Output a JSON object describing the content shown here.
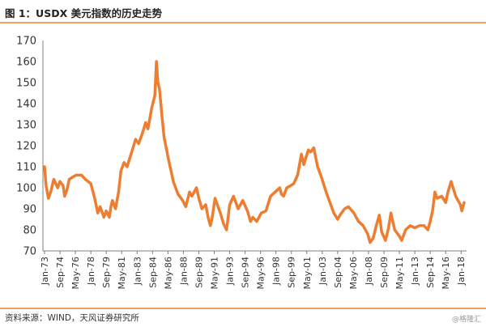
{
  "header": {
    "title": "图 1：USDX 美元指数的历史走势"
  },
  "footer": {
    "source": "资料来源：WIND，天风证券研究所",
    "watermark": "@格隆汇"
  },
  "colors": {
    "series": "#ed7d31",
    "axis": "#7f7f7f",
    "accent_rule": "#f0a060"
  },
  "chart_data": {
    "type": "line",
    "title": "",
    "xlabel": "",
    "ylabel": "",
    "ylim": [
      70,
      170
    ],
    "yticks": [
      70,
      80,
      90,
      100,
      110,
      120,
      130,
      140,
      150,
      160,
      170
    ],
    "grid": false,
    "legend": "none",
    "xticks": [
      "Jan-73",
      "Sep-74",
      "May-76",
      "Jan-78",
      "Sep-79",
      "May-81",
      "Jan-83",
      "Sep-84",
      "May-86",
      "Jan-88",
      "Sep-89",
      "May-91",
      "Jan-93",
      "Sep-94",
      "May-96",
      "Jan-98",
      "Sep-99",
      "May-01",
      "Jan-03",
      "Sep-04",
      "May-06",
      "Jan-08",
      "Sep-09",
      "May-11",
      "Jan-13",
      "Sep-14",
      "May-16",
      "Jan-18"
    ],
    "series": [
      {
        "x": [
          "1973-01",
          "1973-03",
          "1973-06",
          "1973-09",
          "1974-01",
          "1974-06",
          "1974-09",
          "1975-01",
          "1975-03",
          "1975-06",
          "1975-09",
          "1976-01",
          "1976-06",
          "1977-01",
          "1977-06",
          "1978-01",
          "1978-06",
          "1978-10",
          "1979-01",
          "1979-06",
          "1979-09",
          "1980-01",
          "1980-03",
          "1980-05",
          "1980-09",
          "1981-01",
          "1981-04",
          "1981-08",
          "1981-12",
          "1982-06",
          "1982-11",
          "1983-03",
          "1983-08",
          "1983-12",
          "1984-03",
          "1984-08",
          "1984-12",
          "1985-02",
          "1985-04",
          "1985-06",
          "1985-09",
          "1985-12",
          "1986-06",
          "1986-12",
          "1987-06",
          "1987-12",
          "1988-04",
          "1988-09",
          "1988-12",
          "1989-06",
          "1989-09",
          "1990-01",
          "1990-06",
          "1990-09",
          "1990-12",
          "1991-02",
          "1991-06",
          "1991-09",
          "1992-01",
          "1992-05",
          "1992-09",
          "1993-01",
          "1993-06",
          "1993-12",
          "1994-06",
          "1994-12",
          "1995-04",
          "1995-07",
          "1995-12",
          "1996-06",
          "1996-12",
          "1997-06",
          "1997-12",
          "1998-06",
          "1998-08",
          "1998-11",
          "1999-03",
          "1999-08",
          "1999-12",
          "2000-05",
          "2000-10",
          "2001-01",
          "2001-07",
          "2001-10",
          "2002-02",
          "2002-07",
          "2002-12",
          "2003-06",
          "2003-12",
          "2004-04",
          "2004-09",
          "2004-12",
          "2005-06",
          "2005-11",
          "2006-06",
          "2006-12",
          "2007-06",
          "2007-12",
          "2008-03",
          "2008-07",
          "2008-11",
          "2009-03",
          "2009-06",
          "2009-11",
          "2010-03",
          "2010-06",
          "2010-11",
          "2011-05",
          "2011-08",
          "2012-01",
          "2012-07",
          "2013-01",
          "2013-07",
          "2014-01",
          "2014-06",
          "2014-09",
          "2014-12",
          "2015-03",
          "2015-06",
          "2015-12",
          "2016-05",
          "2016-08",
          "2016-12",
          "2017-06",
          "2017-09",
          "2017-12",
          "2018-02",
          "2018-05"
        ],
        "values": [
          110,
          101,
          95,
          98,
          104,
          100,
          103,
          101,
          96,
          99,
          104,
          105,
          106,
          106,
          104,
          102,
          95,
          88,
          91,
          86,
          89,
          86,
          91,
          94,
          90,
          98,
          108,
          112,
          110,
          117,
          123,
          121,
          126,
          131,
          128,
          138,
          144,
          160,
          150,
          147,
          135,
          124,
          113,
          103,
          97,
          94,
          91,
          98,
          96,
          100,
          95,
          90,
          92,
          86,
          82,
          85,
          95,
          92,
          88,
          83,
          80,
          92,
          96,
          90,
          94,
          89,
          84,
          86,
          84,
          88,
          89,
          96,
          98,
          100,
          97,
          96,
          100,
          101,
          102,
          106,
          116,
          111,
          118,
          117,
          119,
          110,
          105,
          98,
          92,
          88,
          85,
          87,
          90,
          91,
          88,
          84,
          82,
          78,
          74,
          76,
          82,
          87,
          79,
          75,
          81,
          88,
          80,
          77,
          75,
          80,
          82,
          81,
          82,
          82,
          80,
          84,
          89,
          98,
          95,
          96,
          93,
          98,
          103,
          96,
          94,
          92,
          89,
          93
        ]
      }
    ]
  }
}
